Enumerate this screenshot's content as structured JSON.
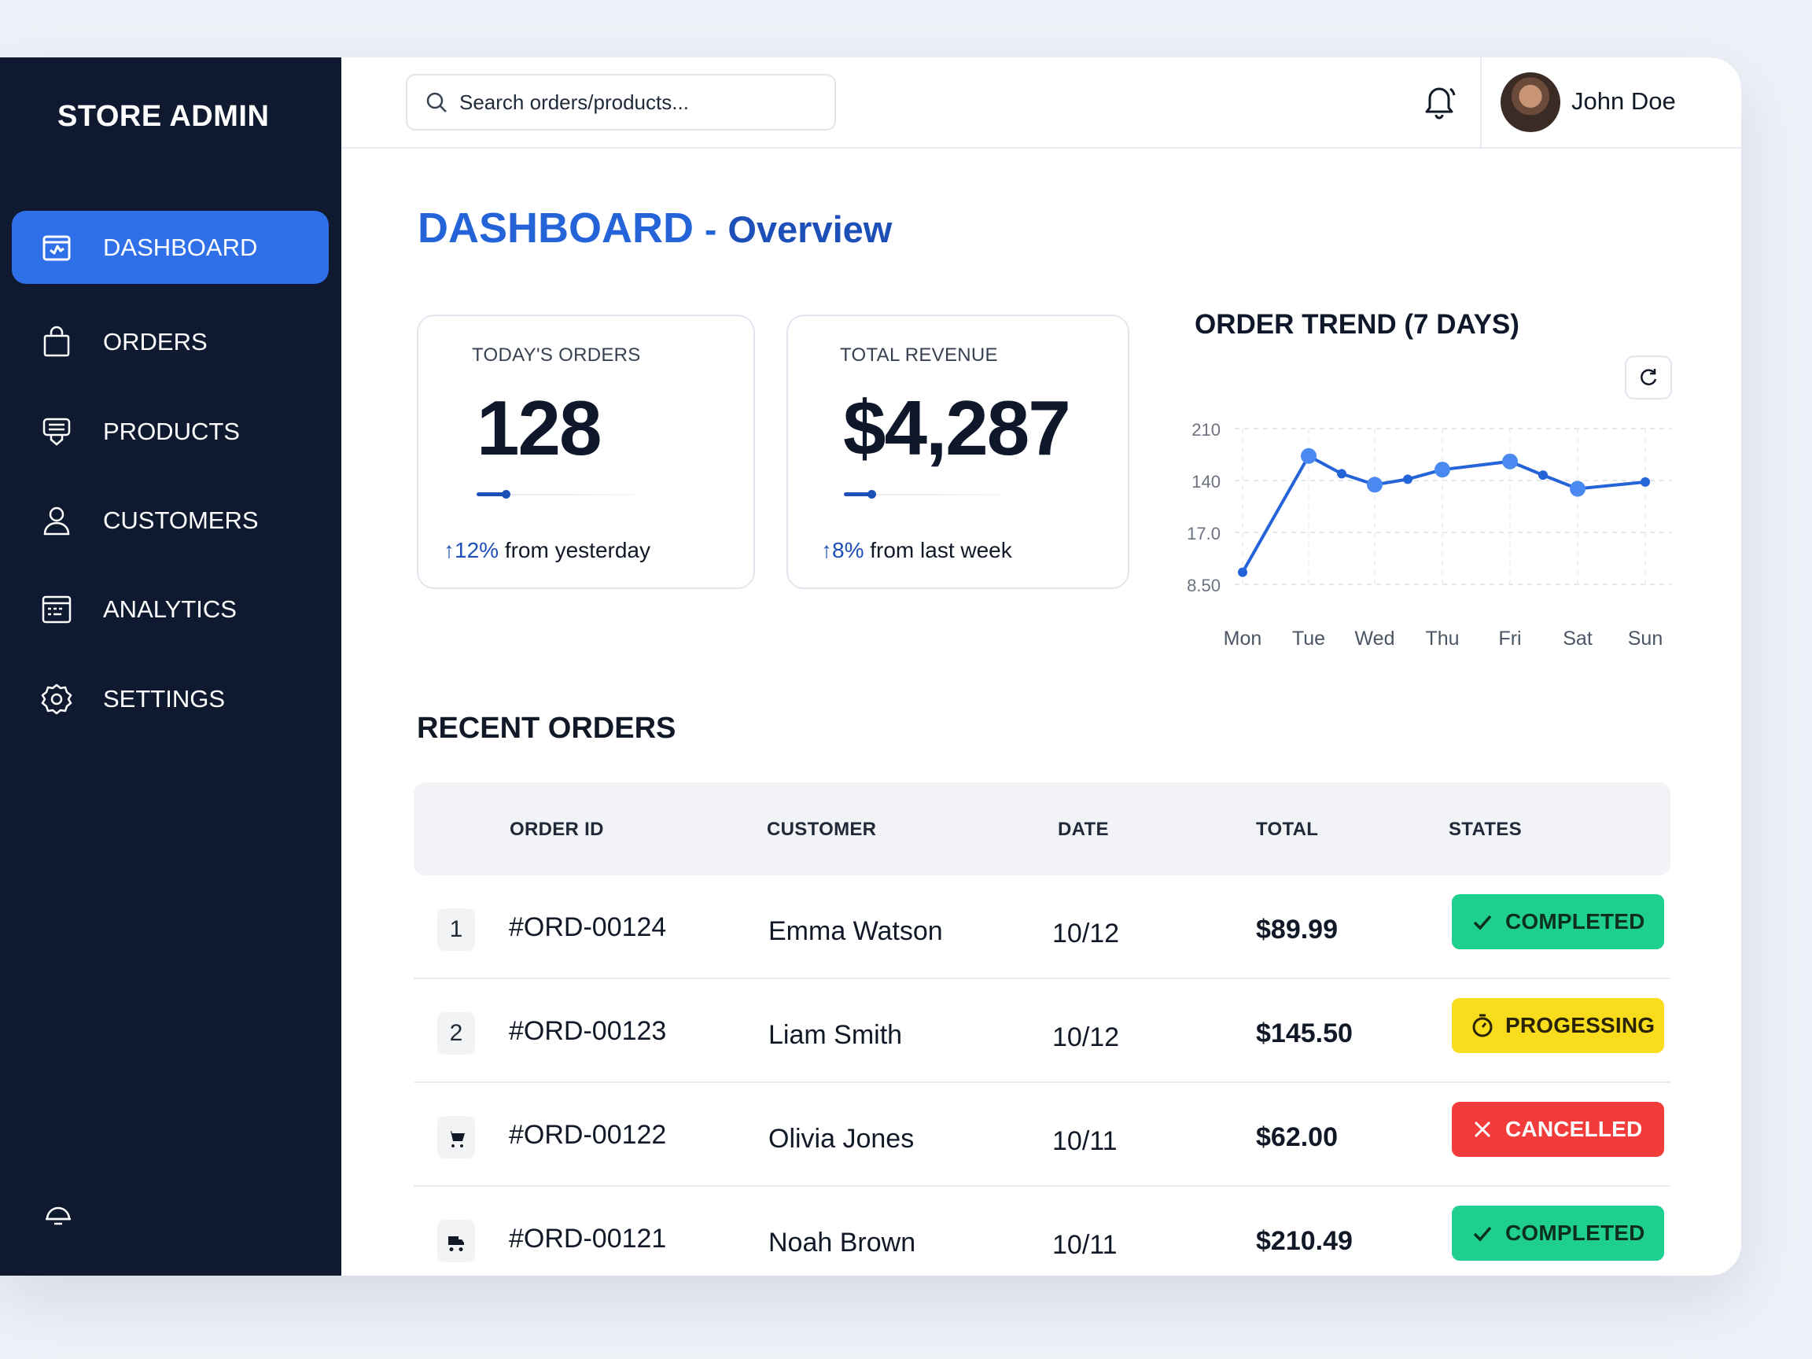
{
  "app": {
    "brand": "STORE ADMIN"
  },
  "sidebar": {
    "items": [
      {
        "label": "DASHBOARD",
        "icon": "dashboard-icon",
        "active": true
      },
      {
        "label": "ORDERS",
        "icon": "shopping-bag-icon"
      },
      {
        "label": "PRODUCTS",
        "icon": "box-icon"
      },
      {
        "label": "CUSTOMERS",
        "icon": "user-icon"
      },
      {
        "label": "ANALYTICS",
        "icon": "analytics-icon"
      },
      {
        "label": "SETTINGS",
        "icon": "gear-icon"
      }
    ],
    "bottom_icon": "help-icon"
  },
  "topbar": {
    "search_placeholder": "Search orders/products...",
    "user_name": "John Doe"
  },
  "page": {
    "title": "DASHBOARD",
    "separator": "-",
    "subtitle": "Overview"
  },
  "stats": [
    {
      "label": "TODAY'S ORDERS",
      "value": "128",
      "change_arrow": "↑",
      "change_value": "12%",
      "change_text": "from yesterday",
      "progress": 0.18
    },
    {
      "label": "TOTAL REVENUE",
      "value": "$4,287",
      "change_arrow": "↑",
      "change_value": "8%",
      "change_text": "from last week",
      "progress": 0.17
    }
  ],
  "chart_data": {
    "type": "line",
    "title": "ORDER TREND (7 DAYS)",
    "categories": [
      "Mon",
      "Tue",
      "Wed",
      "Thu",
      "Fri",
      "Sat",
      "Sun"
    ],
    "y_tick_labels": [
      "210",
      "140",
      "17.0",
      "8.50"
    ],
    "points": [
      {
        "x": "Mon",
        "y": 8.5
      },
      {
        "x": "Tue",
        "y": 17.0
      },
      {
        "x": "Tue+",
        "y": 15.7
      },
      {
        "x": "Wed",
        "y": 14.9
      },
      {
        "x": "Wed+",
        "y": 15.3
      },
      {
        "x": "Thu",
        "y": 16.0
      },
      {
        "x": "Fri",
        "y": 16.6
      },
      {
        "x": "Fri+",
        "y": 15.6
      },
      {
        "x": "Sat",
        "y": 14.6
      },
      {
        "x": "Sun",
        "y": 15.1
      }
    ],
    "color": "#2563d9",
    "grid": true
  },
  "recent_orders": {
    "title": "RECENT ORDERS",
    "columns": [
      "ORDER ID",
      "CUSTOMER",
      "DATE",
      "TOTAL",
      "STATES"
    ],
    "rows": [
      {
        "num": "1",
        "id": "#ORD-00124",
        "customer": "Emma Watson",
        "date": "10/12",
        "total": "$89.99",
        "status": "COMPLETED",
        "status_type": "completed"
      },
      {
        "num": "2",
        "id": "#ORD-00123",
        "customer": "Liam Smith",
        "date": "10/12",
        "total": "$145.50",
        "status": "PROGESSING",
        "status_type": "processing"
      },
      {
        "num": "",
        "id": "#ORD-00122",
        "customer": "Olivia Jones",
        "date": "10/11",
        "total": "$62.00",
        "status": "CANCELLED",
        "status_type": "cancelled"
      },
      {
        "num": "",
        "id": "#ORD-00121",
        "customer": "Noah Brown",
        "date": "10/11",
        "total": "$210.49",
        "status": "COMPLETED",
        "status_type": "completed"
      }
    ]
  },
  "colors": {
    "sidebar_bg": "#0f1a30",
    "accent": "#2f6fe8",
    "completed": "#1fcf8d",
    "processing": "#f9dc1c",
    "cancelled": "#f23b3b"
  }
}
